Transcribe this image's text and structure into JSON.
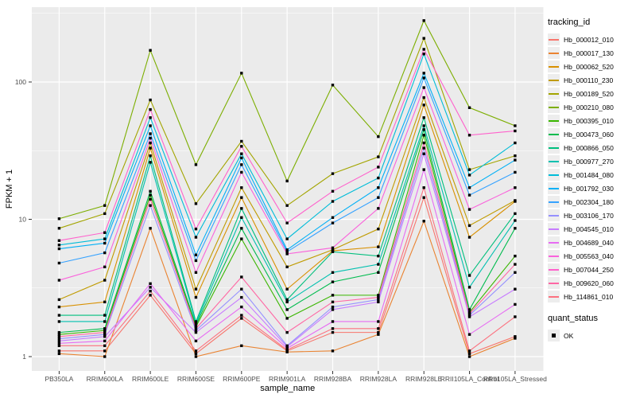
{
  "figure": {
    "x_axis_title": "sample_name",
    "y_axis_title": "FPKM + 1",
    "y_tick_labels": [
      "1",
      "10",
      "100"
    ],
    "y_tick_values": [
      1,
      10,
      100
    ],
    "y_minor_values": [
      3.1623,
      31.623,
      316.23
    ]
  },
  "legend": {
    "tracking_title": "tracking_id",
    "quant_title": "quant_status",
    "quant_ok_label": "OK"
  },
  "colors": {
    "panel_bg": "#ebebeb",
    "grid": "#ffffff",
    "tick_text": "#4d4d4d",
    "axis_title_text": "#000000",
    "marker": "#000000",
    "legend_key_bg": "#ededed"
  },
  "chart_data": {
    "type": "line",
    "title": "",
    "xlabel": "sample_name",
    "ylabel": "FPKM + 1",
    "y_scale": "log10",
    "y_ticks": [
      1,
      10,
      100
    ],
    "grid": true,
    "legend_position": "right",
    "marker_legend": {
      "label": "OK",
      "shape": "square",
      "color": "#000000"
    },
    "categories": [
      "PB350LA",
      "RRIM600LA",
      "RRIM600LE",
      "RRIM600SE",
      "RRIM600PE",
      "RRIM901LA",
      "RRIM928BA",
      "RRIM928LA",
      "RRIM928LE",
      "RRII105LA_Control",
      "RRII105LA_Stressed"
    ],
    "series": [
      {
        "name": "Hb_000012_010",
        "color": "#F8766D",
        "values": [
          1.1,
          1.1,
          2.8,
          1.05,
          1.9,
          1.1,
          1.5,
          1.5,
          14.4,
          1.05,
          1.4
        ]
      },
      {
        "name": "Hb_000017_130",
        "color": "#EA8331",
        "values": [
          1.05,
          1.0,
          8.6,
          1.0,
          1.2,
          1.08,
          1.1,
          1.45,
          9.7,
          1.0,
          1.36
        ]
      },
      {
        "name": "Hb_000062_520",
        "color": "#D89000",
        "values": [
          2.3,
          2.5,
          33,
          2.7,
          14.4,
          3.1,
          5.9,
          6.3,
          68,
          7.4,
          13.5
        ]
      },
      {
        "name": "Hb_000110_230",
        "color": "#C09B00",
        "values": [
          2.6,
          3.6,
          36,
          3.1,
          17,
          4.5,
          6.0,
          8.5,
          77,
          9.0,
          13.7
        ]
      },
      {
        "name": "Hb_000189_520",
        "color": "#A3A500",
        "values": [
          8.6,
          11.0,
          74,
          13,
          37,
          12.6,
          21.5,
          28.5,
          208,
          23,
          29
        ]
      },
      {
        "name": "Hb_000210_080",
        "color": "#7CAE00",
        "values": [
          10.1,
          12.6,
          170,
          25,
          116,
          19,
          95,
          40,
          280,
          65,
          48
        ]
      },
      {
        "name": "Hb_000395_010",
        "color": "#39B600",
        "values": [
          1.45,
          1.55,
          15,
          1.65,
          7.2,
          1.9,
          2.8,
          2.8,
          41,
          2.1,
          5.4
        ]
      },
      {
        "name": "Hb_000473_060",
        "color": "#00BB4E",
        "values": [
          1.5,
          1.6,
          16,
          1.7,
          8.6,
          2.2,
          3.5,
          4.1,
          45,
          2.2,
          8.6
        ]
      },
      {
        "name": "Hb_000866_050",
        "color": "#00BF7D",
        "values": [
          2.0,
          2.0,
          29,
          1.8,
          12,
          2.6,
          5.8,
          5.4,
          55,
          3.9,
          11
        ]
      },
      {
        "name": "Hb_000977_270",
        "color": "#00C0AF",
        "values": [
          1.8,
          1.8,
          26,
          1.75,
          10.3,
          2.5,
          4.1,
          4.7,
          48,
          3.2,
          9.8
        ]
      },
      {
        "name": "Hb_001484_080",
        "color": "#00BCD8",
        "values": [
          6.5,
          7.2,
          55,
          7.4,
          30,
          7.2,
          13.5,
          20,
          160,
          21,
          36
        ]
      },
      {
        "name": "Hb_001792_030",
        "color": "#00B0F6",
        "values": [
          6.1,
          6.7,
          48,
          5.5,
          28,
          6.0,
          10.3,
          17,
          116,
          17,
          27
        ]
      },
      {
        "name": "Hb_002304_180",
        "color": "#35A2FF",
        "values": [
          4.8,
          5.7,
          42,
          5.0,
          25,
          5.8,
          9.4,
          14.4,
          107,
          15,
          22
        ]
      },
      {
        "name": "Hb_003106_170",
        "color": "#9590FF",
        "values": [
          1.35,
          1.45,
          12.6,
          1.55,
          3.1,
          1.2,
          2.3,
          2.6,
          33,
          2.0,
          4.1
        ]
      },
      {
        "name": "Hb_004545_010",
        "color": "#C77CFF",
        "values": [
          1.3,
          1.4,
          3.2,
          1.5,
          2.7,
          1.18,
          2.2,
          2.5,
          30,
          1.95,
          3.1
        ]
      },
      {
        "name": "Hb_004689_040",
        "color": "#E76BF3",
        "values": [
          1.25,
          1.3,
          3.4,
          1.3,
          2.3,
          1.15,
          1.8,
          1.8,
          23,
          1.45,
          2.4
        ]
      },
      {
        "name": "Hb_005563_040",
        "color": "#FA62DB",
        "values": [
          3.6,
          4.5,
          39,
          4.1,
          22,
          5.6,
          6.2,
          12,
          91,
          11.8,
          17
        ]
      },
      {
        "name": "Hb_007044_250",
        "color": "#FF61CC",
        "values": [
          7.0,
          8.0,
          63,
          8.5,
          34,
          9.4,
          16,
          24,
          173,
          41,
          44
        ]
      },
      {
        "name": "Hb_009620_060",
        "color": "#FF67A4",
        "values": [
          1.4,
          1.5,
          14,
          1.6,
          3.8,
          1.5,
          2.5,
          2.7,
          36,
          2.05,
          4.7
        ]
      },
      {
        "name": "Hb_114861_010",
        "color": "#FC717F",
        "values": [
          1.2,
          1.2,
          3.0,
          1.1,
          2.0,
          1.12,
          1.6,
          1.6,
          17,
          1.1,
          1.95
        ]
      }
    ]
  }
}
